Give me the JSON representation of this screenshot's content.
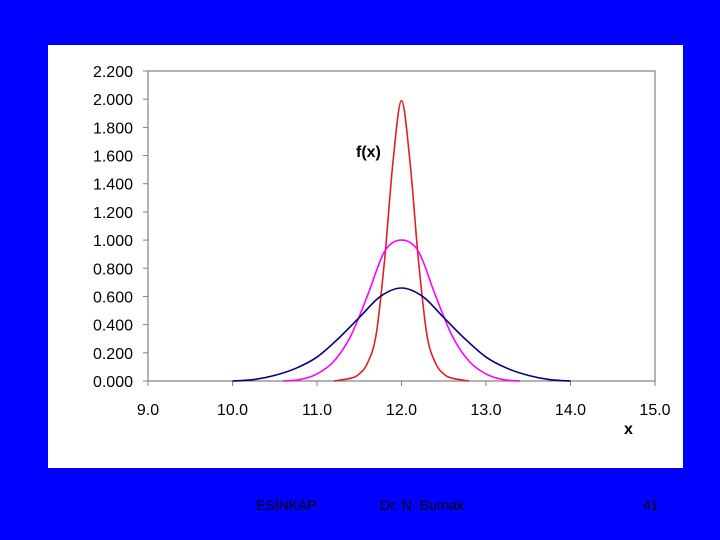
{
  "slide": {
    "background_color": "#0000ff",
    "footer": {
      "left": "ESİNKAP",
      "center": "Dr. N. Burnak",
      "page": "41"
    }
  },
  "chart_data": {
    "type": "line",
    "title": "",
    "xlabel": "x",
    "ylabel": "f(x)",
    "xlim": [
      9.0,
      15.0
    ],
    "ylim": [
      0.0,
      2.2
    ],
    "x_ticks": [
      "9.0",
      "10.0",
      "11.0",
      "12.0",
      "13.0",
      "14.0",
      "15.0"
    ],
    "y_ticks": [
      "0.000",
      "0.200",
      "0.400",
      "0.600",
      "0.800",
      "1.000",
      "1.200",
      "1.400",
      "1.600",
      "1.800",
      "2.000",
      "2.200"
    ],
    "grid": false,
    "legend": "none",
    "series": [
      {
        "color": "#e02020",
        "x": [
          11.2,
          11.4,
          11.5,
          11.6,
          11.7,
          11.8,
          11.9,
          12.0,
          12.1,
          12.2,
          12.3,
          12.4,
          12.5,
          12.6,
          12.8
        ],
        "y": [
          0.0,
          0.02,
          0.05,
          0.13,
          0.33,
          0.86,
          1.56,
          1.99,
          1.56,
          0.86,
          0.33,
          0.13,
          0.05,
          0.02,
          0.0
        ]
      },
      {
        "color": "#ff00ff",
        "x": [
          10.6,
          10.8,
          11.0,
          11.2,
          11.4,
          11.6,
          11.8,
          12.0,
          12.2,
          12.4,
          12.6,
          12.8,
          13.0,
          13.2,
          13.4
        ],
        "y": [
          0.0,
          0.01,
          0.05,
          0.14,
          0.32,
          0.61,
          0.92,
          1.0,
          0.92,
          0.61,
          0.32,
          0.14,
          0.05,
          0.01,
          0.0
        ]
      },
      {
        "color": "#000080",
        "x": [
          10.0,
          10.25,
          10.5,
          10.75,
          11.0,
          11.25,
          11.5,
          11.75,
          12.0,
          12.25,
          12.5,
          12.75,
          13.0,
          13.25,
          13.5,
          13.75,
          14.0
        ],
        "y": [
          0.0,
          0.01,
          0.04,
          0.09,
          0.17,
          0.3,
          0.45,
          0.6,
          0.66,
          0.6,
          0.45,
          0.3,
          0.17,
          0.09,
          0.04,
          0.01,
          0.0
        ]
      }
    ]
  }
}
